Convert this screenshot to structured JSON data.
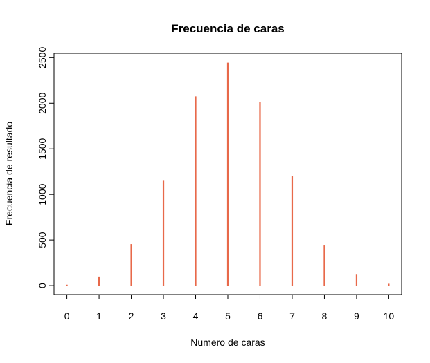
{
  "chart_data": {
    "type": "bar",
    "style": "spike",
    "title": "Frecuencia de caras",
    "xlabel": "Numero de caras",
    "ylabel": "Frecuencia de resultado",
    "categories": [
      "0",
      "1",
      "2",
      "3",
      "4",
      "5",
      "6",
      "7",
      "8",
      "9",
      "10"
    ],
    "x": [
      0,
      1,
      2,
      3,
      4,
      5,
      6,
      7,
      8,
      9,
      10
    ],
    "values": [
      10,
      100,
      455,
      1150,
      2075,
      2445,
      2015,
      1205,
      440,
      120,
      20
    ],
    "xticks": [
      0,
      1,
      2,
      3,
      4,
      5,
      6,
      7,
      8,
      9,
      10
    ],
    "yticks": [
      0,
      500,
      1000,
      1500,
      2000,
      2500
    ],
    "xlim": [
      -0.4,
      10.4
    ],
    "ylim": [
      -98,
      2548
    ],
    "bar_color": "#E8694A",
    "grid": false,
    "legend": "none"
  }
}
